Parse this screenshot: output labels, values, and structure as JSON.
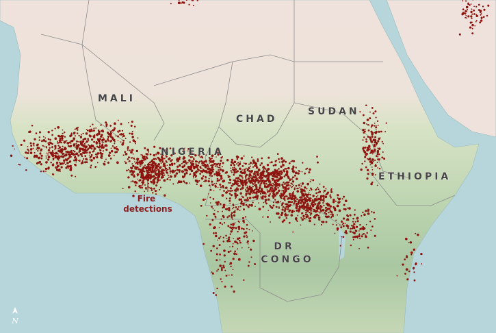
{
  "map": {
    "labels": [
      {
        "lines": [
          "MALI"
        ]
      },
      {
        "lines": [
          "CHAD"
        ]
      },
      {
        "lines": [
          "SUDAN"
        ]
      },
      {
        "lines": [
          "NIGERIA"
        ]
      },
      {
        "lines": [
          "ETHIOPIA"
        ]
      },
      {
        "lines": [
          "DR",
          "CONGO"
        ]
      }
    ],
    "annotation": {
      "lines": [
        "Fire",
        "detections"
      ]
    },
    "north_arrow": "N"
  }
}
